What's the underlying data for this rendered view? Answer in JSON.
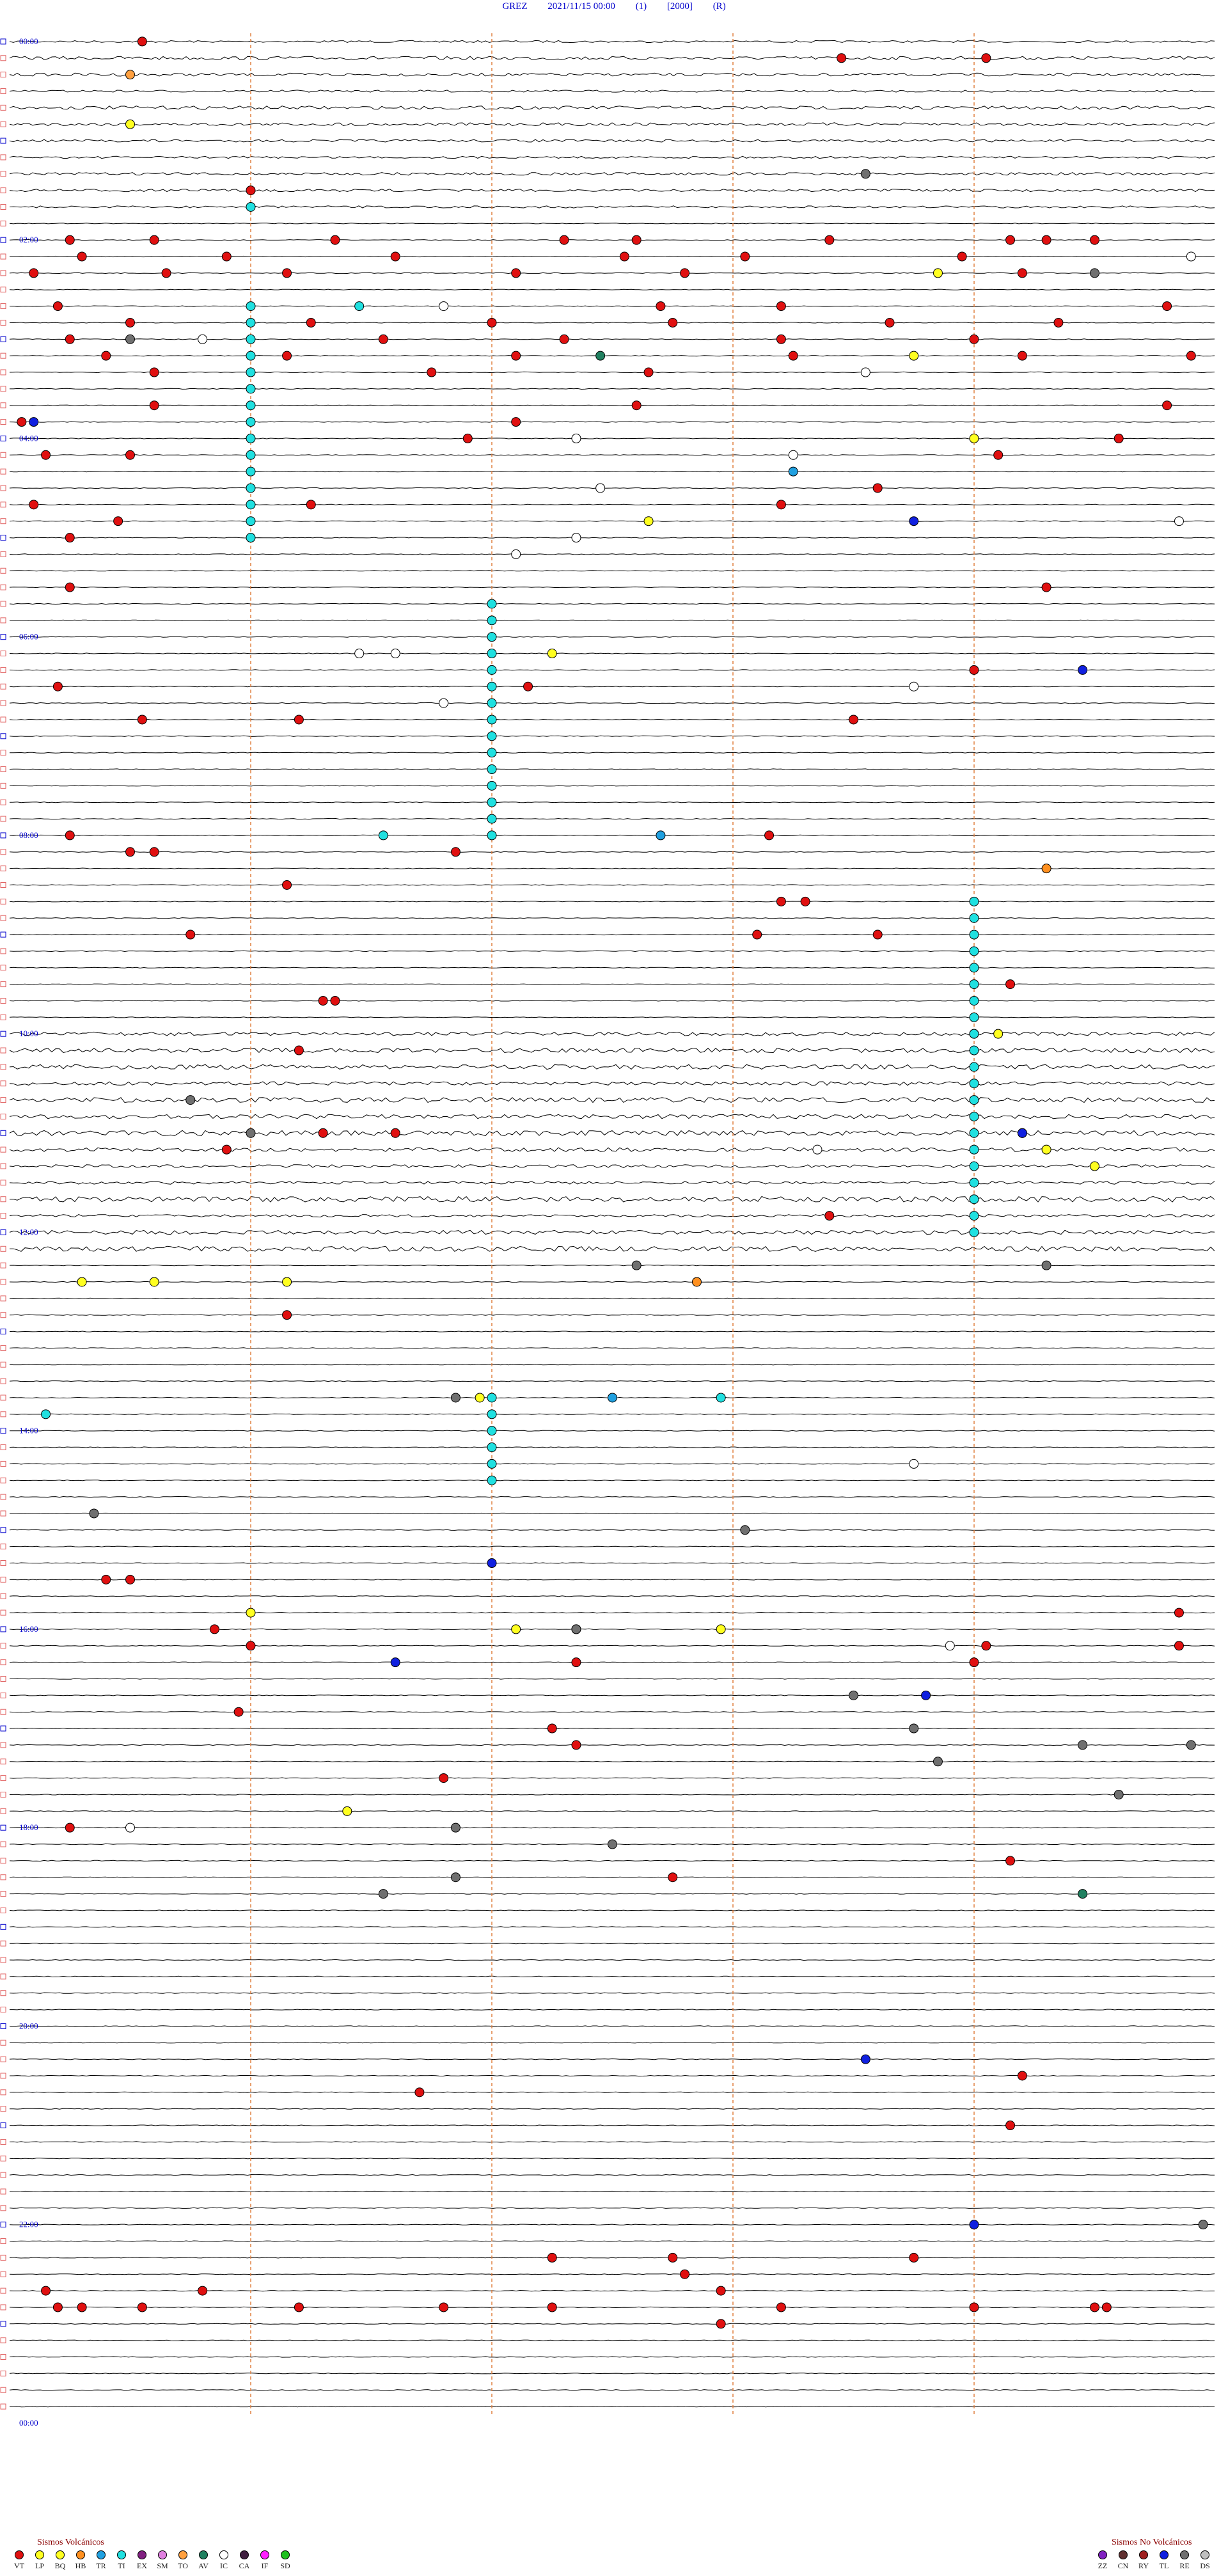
{
  "header": {
    "station": "GREZ",
    "datetime": "2021/11/15 00:00",
    "channel": "(1)",
    "scale": "[2000]",
    "mode": "(R)"
  },
  "legend_volcanic": {
    "title": "Sismos Volcánicos",
    "items": [
      {
        "code": "VT",
        "color": "#e01010"
      },
      {
        "code": "LP",
        "color": "#ffff20"
      },
      {
        "code": "BQ",
        "color": "#ffff20"
      },
      {
        "code": "HB",
        "color": "#ff9020"
      },
      {
        "code": "TR",
        "color": "#20a0e0"
      },
      {
        "code": "TI",
        "color": "#20e0e0"
      },
      {
        "code": "EX",
        "color": "#802080"
      },
      {
        "code": "SM",
        "color": "#e080e0"
      },
      {
        "code": "TO",
        "color": "#ffa040"
      },
      {
        "code": "AV",
        "color": "#208060"
      },
      {
        "code": "IC",
        "color": "#ffffff"
      },
      {
        "code": "CA",
        "color": "#402040"
      },
      {
        "code": "IF",
        "color": "#ff20ff"
      },
      {
        "code": "SD",
        "color": "#20c020"
      }
    ]
  },
  "legend_nonvolcanic": {
    "title": "Sismos No Volcánicos",
    "items": [
      {
        "code": "ZZ",
        "color": "#8020c0"
      },
      {
        "code": "CN",
        "color": "#603030"
      },
      {
        "code": "RY",
        "color": "#a02020"
      },
      {
        "code": "TL",
        "color": "#1020e0"
      },
      {
        "code": "RE",
        "color": "#707070"
      },
      {
        "code": "DS",
        "color": "#c0c0c0"
      }
    ]
  },
  "chart_data": {
    "type": "scatter",
    "title": "GREZ 2021/11/15 00:00 (1) [2000] (R)",
    "x_unit": "minutes within trace row",
    "y_unit": "hours",
    "time_labels": [
      "00:00",
      "02:00",
      "04:00",
      "06:00",
      "08:00",
      "10:00",
      "12:00",
      "14:00",
      "16:00",
      "18:00",
      "20:00",
      "22:00",
      "00:00"
    ],
    "rows": 144,
    "row_minutes": 10,
    "ylim": [
      0,
      24
    ],
    "xlim": [
      0,
      10
    ],
    "vertical_markers_min": [
      2,
      4,
      6,
      8
    ],
    "events": [
      {
        "t": 0.05,
        "x": 1.1,
        "type": "VT"
      },
      {
        "t": 0.1,
        "x": 6.9,
        "type": "VT"
      },
      {
        "t": 0.1,
        "x": 8.1,
        "type": "VT"
      },
      {
        "t": 0.3,
        "x": 1.0,
        "type": "TO"
      },
      {
        "t": 0.8,
        "x": 1.0,
        "type": "LP"
      },
      {
        "t": 1.3,
        "x": 7.1,
        "type": "RE"
      },
      {
        "t": 1.5,
        "x": 2.0,
        "type": "VT"
      },
      {
        "t": 1.6,
        "x": 2.0,
        "type": "TI"
      },
      {
        "t": 2.0,
        "x": 0.5,
        "type": "VT"
      },
      {
        "t": 2.0,
        "x": 1.2,
        "type": "VT"
      },
      {
        "t": 2.0,
        "x": 2.7,
        "type": "VT"
      },
      {
        "t": 2.0,
        "x": 4.6,
        "type": "VT"
      },
      {
        "t": 2.0,
        "x": 5.2,
        "type": "VT"
      },
      {
        "t": 2.0,
        "x": 6.8,
        "type": "VT"
      },
      {
        "t": 2.0,
        "x": 8.3,
        "type": "VT"
      },
      {
        "t": 2.0,
        "x": 8.6,
        "type": "VT"
      },
      {
        "t": 2.0,
        "x": 9.0,
        "type": "VT"
      },
      {
        "t": 2.2,
        "x": 0.6,
        "type": "VT"
      },
      {
        "t": 2.2,
        "x": 1.8,
        "type": "VT"
      },
      {
        "t": 2.2,
        "x": 3.2,
        "type": "VT"
      },
      {
        "t": 2.2,
        "x": 5.1,
        "type": "VT"
      },
      {
        "t": 2.2,
        "x": 6.1,
        "type": "VT"
      },
      {
        "t": 2.2,
        "x": 7.9,
        "type": "VT"
      },
      {
        "t": 2.2,
        "x": 9.8,
        "type": "IC"
      },
      {
        "t": 2.3,
        "x": 7.7,
        "type": "LP"
      },
      {
        "t": 2.3,
        "x": 9.0,
        "type": "RE"
      },
      {
        "t": 2.4,
        "x": 0.2,
        "type": "VT"
      },
      {
        "t": 2.4,
        "x": 1.3,
        "type": "VT"
      },
      {
        "t": 2.4,
        "x": 2.3,
        "type": "VT"
      },
      {
        "t": 2.4,
        "x": 4.2,
        "type": "VT"
      },
      {
        "t": 2.4,
        "x": 5.6,
        "type": "VT"
      },
      {
        "t": 2.4,
        "x": 8.4,
        "type": "VT"
      },
      {
        "t": 2.6,
        "x": 0.4,
        "type": "VT"
      },
      {
        "t": 2.6,
        "x": 2.9,
        "type": "TI"
      },
      {
        "t": 2.6,
        "x": 3.6,
        "type": "IC"
      },
      {
        "t": 2.6,
        "x": 5.4,
        "type": "VT"
      },
      {
        "t": 2.6,
        "x": 6.4,
        "type": "VT"
      },
      {
        "t": 2.6,
        "x": 9.6,
        "type": "VT"
      },
      {
        "t": 2.8,
        "x": 1.0,
        "type": "VT"
      },
      {
        "t": 2.8,
        "x": 2.5,
        "type": "VT"
      },
      {
        "t": 2.8,
        "x": 4.0,
        "type": "VT"
      },
      {
        "t": 2.8,
        "x": 5.5,
        "type": "VT"
      },
      {
        "t": 2.8,
        "x": 7.3,
        "type": "VT"
      },
      {
        "t": 2.8,
        "x": 8.7,
        "type": "VT"
      },
      {
        "t": 3.0,
        "x": 0.5,
        "type": "VT"
      },
      {
        "t": 3.0,
        "x": 1.6,
        "type": "IC"
      },
      {
        "t": 3.0,
        "x": 3.1,
        "type": "VT"
      },
      {
        "t": 3.0,
        "x": 4.6,
        "type": "VT"
      },
      {
        "t": 3.0,
        "x": 6.4,
        "type": "VT"
      },
      {
        "t": 3.0,
        "x": 8.0,
        "type": "VT"
      },
      {
        "t": 3.0,
        "x": 1.0,
        "type": "RE"
      },
      {
        "t": 3.2,
        "x": 0.8,
        "type": "VT"
      },
      {
        "t": 3.2,
        "x": 2.3,
        "type": "VT"
      },
      {
        "t": 3.2,
        "x": 4.2,
        "type": "VT"
      },
      {
        "t": 3.2,
        "x": 4.9,
        "type": "AV"
      },
      {
        "t": 3.2,
        "x": 6.5,
        "type": "VT"
      },
      {
        "t": 3.2,
        "x": 7.5,
        "type": "LP"
      },
      {
        "t": 3.2,
        "x": 8.4,
        "type": "VT"
      },
      {
        "t": 3.2,
        "x": 9.8,
        "type": "VT"
      },
      {
        "t": 3.4,
        "x": 1.2,
        "type": "VT"
      },
      {
        "t": 3.4,
        "x": 3.5,
        "type": "VT"
      },
      {
        "t": 3.4,
        "x": 5.3,
        "type": "VT"
      },
      {
        "t": 3.4,
        "x": 7.1,
        "type": "IC"
      },
      {
        "t": 3.6,
        "x": 1.2,
        "type": "VT"
      },
      {
        "t": 3.6,
        "x": 5.2,
        "type": "VT"
      },
      {
        "t": 3.6,
        "x": 9.6,
        "type": "VT"
      },
      {
        "t": 3.8,
        "x": 0.1,
        "type": "VT"
      },
      {
        "t": 3.8,
        "x": 4.2,
        "type": "VT"
      },
      {
        "t": 3.9,
        "x": 0.2,
        "type": "TL"
      },
      {
        "t": 4.0,
        "x": 3.8,
        "type": "VT"
      },
      {
        "t": 4.0,
        "x": 4.7,
        "type": "IC"
      },
      {
        "t": 4.0,
        "x": 8.0,
        "type": "LP"
      },
      {
        "t": 4.0,
        "x": 9.2,
        "type": "VT"
      },
      {
        "t": 4.2,
        "x": 0.3,
        "type": "VT"
      },
      {
        "t": 4.2,
        "x": 1.0,
        "type": "VT"
      },
      {
        "t": 4.2,
        "x": 6.5,
        "type": "IC"
      },
      {
        "t": 4.2,
        "x": 8.2,
        "type": "VT"
      },
      {
        "t": 4.3,
        "x": 6.5,
        "type": "TR"
      },
      {
        "t": 4.5,
        "x": 4.9,
        "type": "IC"
      },
      {
        "t": 4.5,
        "x": 7.2,
        "type": "VT"
      },
      {
        "t": 4.6,
        "x": 0.2,
        "type": "VT"
      },
      {
        "t": 4.6,
        "x": 2.5,
        "type": "VT"
      },
      {
        "t": 4.6,
        "x": 6.4,
        "type": "VT"
      },
      {
        "t": 4.8,
        "x": 0.9,
        "type": "VT"
      },
      {
        "t": 4.8,
        "x": 5.3,
        "type": "LP"
      },
      {
        "t": 4.8,
        "x": 7.5,
        "type": "TL"
      },
      {
        "t": 4.8,
        "x": 9.7,
        "type": "IC"
      },
      {
        "t": 5.0,
        "x": 0.5,
        "type": "VT"
      },
      {
        "t": 5.0,
        "x": 4.7,
        "type": "IC"
      },
      {
        "t": 5.2,
        "x": 4.2,
        "type": "IC"
      },
      {
        "t": 5.5,
        "x": 0.5,
        "type": "VT"
      },
      {
        "t": 5.5,
        "x": 8.6,
        "type": "VT"
      },
      {
        "t": 6.1,
        "x": 2.9,
        "type": "IC"
      },
      {
        "t": 6.1,
        "x": 3.2,
        "type": "IC"
      },
      {
        "t": 6.1,
        "x": 4.5,
        "type": "LP"
      },
      {
        "t": 6.3,
        "x": 8.0,
        "type": "VT"
      },
      {
        "t": 6.3,
        "x": 8.9,
        "type": "TL"
      },
      {
        "t": 6.5,
        "x": 0.4,
        "type": "VT"
      },
      {
        "t": 6.5,
        "x": 4.3,
        "type": "VT"
      },
      {
        "t": 6.5,
        "x": 7.5,
        "type": "IC"
      },
      {
        "t": 6.6,
        "x": 3.6,
        "type": "IC"
      },
      {
        "t": 6.8,
        "x": 1.1,
        "type": "VT"
      },
      {
        "t": 6.8,
        "x": 2.4,
        "type": "VT"
      },
      {
        "t": 6.8,
        "x": 7.0,
        "type": "VT"
      },
      {
        "t": 8.0,
        "x": 0.5,
        "type": "VT"
      },
      {
        "t": 8.0,
        "x": 3.1,
        "type": "TI"
      },
      {
        "t": 8.0,
        "x": 5.4,
        "type": "TR"
      },
      {
        "t": 8.0,
        "x": 6.3,
        "type": "VT"
      },
      {
        "t": 8.2,
        "x": 1.0,
        "type": "VT"
      },
      {
        "t": 8.2,
        "x": 1.2,
        "type": "VT"
      },
      {
        "t": 8.2,
        "x": 3.7,
        "type": "VT"
      },
      {
        "t": 8.3,
        "x": 8.6,
        "type": "HB"
      },
      {
        "t": 8.5,
        "x": 2.3,
        "type": "VT"
      },
      {
        "t": 8.6,
        "x": 6.4,
        "type": "VT"
      },
      {
        "t": 8.6,
        "x": 6.6,
        "type": "VT"
      },
      {
        "t": 9.0,
        "x": 1.5,
        "type": "VT"
      },
      {
        "t": 9.0,
        "x": 6.2,
        "type": "VT"
      },
      {
        "t": 9.0,
        "x": 7.2,
        "type": "VT"
      },
      {
        "t": 9.5,
        "x": 8.3,
        "type": "VT"
      },
      {
        "t": 9.7,
        "x": 2.6,
        "type": "VT"
      },
      {
        "t": 9.7,
        "x": 2.7,
        "type": "VT"
      },
      {
        "t": 10.0,
        "x": 8.2,
        "type": "LP"
      },
      {
        "t": 10.2,
        "x": 2.4,
        "type": "VT"
      },
      {
        "t": 10.6,
        "x": 1.5,
        "type": "RE"
      },
      {
        "t": 11.0,
        "x": 2.0,
        "type": "RE"
      },
      {
        "t": 11.0,
        "x": 2.6,
        "type": "VT"
      },
      {
        "t": 11.0,
        "x": 3.2,
        "type": "VT"
      },
      {
        "t": 11.0,
        "x": 8.4,
        "type": "VT"
      },
      {
        "t": 11.0,
        "x": 8.4,
        "type": "TL"
      },
      {
        "t": 11.2,
        "x": 1.8,
        "type": "VT"
      },
      {
        "t": 11.2,
        "x": 6.7,
        "type": "IC"
      },
      {
        "t": 11.2,
        "x": 8.6,
        "type": "LP"
      },
      {
        "t": 11.4,
        "x": 9.0,
        "type": "LP"
      },
      {
        "t": 11.8,
        "x": 6.8,
        "type": "VT"
      },
      {
        "t": 12.3,
        "x": 5.2,
        "type": "RE"
      },
      {
        "t": 12.4,
        "x": 8.6,
        "type": "RE"
      },
      {
        "t": 12.5,
        "x": 0.6,
        "type": "LP"
      },
      {
        "t": 12.5,
        "x": 1.2,
        "type": "LP"
      },
      {
        "t": 12.5,
        "x": 2.3,
        "type": "LP"
      },
      {
        "t": 12.5,
        "x": 5.7,
        "type": "HB"
      },
      {
        "t": 12.8,
        "x": 2.3,
        "type": "VT"
      },
      {
        "t": 13.6,
        "x": 3.7,
        "type": "RE"
      },
      {
        "t": 13.6,
        "x": 5.9,
        "type": "TI"
      },
      {
        "t": 13.7,
        "x": 3.9,
        "type": "LP"
      },
      {
        "t": 13.7,
        "x": 5.0,
        "type": "TR"
      },
      {
        "t": 13.8,
        "x": 0.3,
        "type": "TI"
      },
      {
        "t": 14.3,
        "x": 7.5,
        "type": "IC"
      },
      {
        "t": 14.8,
        "x": 0.7,
        "type": "RE"
      },
      {
        "t": 15.0,
        "x": 6.1,
        "type": "RE"
      },
      {
        "t": 15.3,
        "x": 4.0,
        "type": "TL"
      },
      {
        "t": 15.5,
        "x": 0.8,
        "type": "VT"
      },
      {
        "t": 15.5,
        "x": 1.0,
        "type": "VT"
      },
      {
        "t": 15.8,
        "x": 9.7,
        "type": "VT"
      },
      {
        "t": 15.9,
        "x": 2.0,
        "type": "LP"
      },
      {
        "t": 16.0,
        "x": 1.7,
        "type": "VT"
      },
      {
        "t": 16.0,
        "x": 4.2,
        "type": "LP"
      },
      {
        "t": 16.0,
        "x": 4.7,
        "type": "LP"
      },
      {
        "t": 16.0,
        "x": 5.9,
        "type": "LP"
      },
      {
        "t": 16.0,
        "x": 4.7,
        "type": "RE"
      },
      {
        "t": 16.1,
        "x": 8.1,
        "type": "VT"
      },
      {
        "t": 16.2,
        "x": 2.0,
        "type": "VT"
      },
      {
        "t": 16.2,
        "x": 7.8,
        "type": "IC"
      },
      {
        "t": 16.2,
        "x": 9.7,
        "type": "VT"
      },
      {
        "t": 16.3,
        "x": 3.2,
        "type": "TL"
      },
      {
        "t": 16.4,
        "x": 4.7,
        "type": "VT"
      },
      {
        "t": 16.4,
        "x": 8.0,
        "type": "VT"
      },
      {
        "t": 16.6,
        "x": 7.6,
        "type": "TL"
      },
      {
        "t": 16.7,
        "x": 7.0,
        "type": "RE"
      },
      {
        "t": 16.8,
        "x": 1.9,
        "type": "VT"
      },
      {
        "t": 17.0,
        "x": 4.5,
        "type": "VT"
      },
      {
        "t": 17.0,
        "x": 7.5,
        "type": "RE"
      },
      {
        "t": 17.1,
        "x": 8.9,
        "type": "RE"
      },
      {
        "t": 17.1,
        "x": 9.8,
        "type": "RE"
      },
      {
        "t": 17.2,
        "x": 4.7,
        "type": "VT"
      },
      {
        "t": 17.3,
        "x": 7.7,
        "type": "RE"
      },
      {
        "t": 17.5,
        "x": 3.6,
        "type": "VT"
      },
      {
        "t": 17.7,
        "x": 9.2,
        "type": "RE"
      },
      {
        "t": 17.8,
        "x": 2.8,
        "type": "LP"
      },
      {
        "t": 18.0,
        "x": 0.5,
        "type": "VT"
      },
      {
        "t": 18.0,
        "x": 1.0,
        "type": "IC"
      },
      {
        "t": 18.0,
        "x": 3.7,
        "type": "RE"
      },
      {
        "t": 18.2,
        "x": 5.0,
        "type": "RE"
      },
      {
        "t": 18.3,
        "x": 8.3,
        "type": "VT"
      },
      {
        "t": 18.5,
        "x": 5.5,
        "type": "VT"
      },
      {
        "t": 18.6,
        "x": 3.1,
        "type": "RE"
      },
      {
        "t": 18.5,
        "x": 3.7,
        "type": "RE"
      },
      {
        "t": 18.6,
        "x": 8.9,
        "type": "AV"
      },
      {
        "t": 20.3,
        "x": 7.1,
        "type": "TL"
      },
      {
        "t": 20.5,
        "x": 8.4,
        "type": "VT"
      },
      {
        "t": 20.7,
        "x": 3.4,
        "type": "VT"
      },
      {
        "t": 21.0,
        "x": 8.3,
        "type": "VT"
      },
      {
        "t": 22.0,
        "x": 8.0,
        "type": "TL"
      },
      {
        "t": 22.0,
        "x": 9.9,
        "type": "RE"
      },
      {
        "t": 22.3,
        "x": 4.5,
        "type": "VT"
      },
      {
        "t": 22.3,
        "x": 5.5,
        "type": "VT"
      },
      {
        "t": 22.3,
        "x": 7.5,
        "type": "VT"
      },
      {
        "t": 22.5,
        "x": 5.6,
        "type": "VT"
      },
      {
        "t": 22.7,
        "x": 0.3,
        "type": "VT"
      },
      {
        "t": 22.7,
        "x": 1.6,
        "type": "VT"
      },
      {
        "t": 22.7,
        "x": 5.9,
        "type": "VT"
      },
      {
        "t": 22.8,
        "x": 0.6,
        "type": "VT"
      },
      {
        "t": 22.8,
        "x": 6.4,
        "type": "VT"
      },
      {
        "t": 22.8,
        "x": 9.0,
        "type": "VT"
      },
      {
        "t": 22.8,
        "x": 9.1,
        "type": "VT"
      },
      {
        "t": 22.9,
        "x": 0.4,
        "type": "VT"
      },
      {
        "t": 22.9,
        "x": 1.1,
        "type": "VT"
      },
      {
        "t": 22.9,
        "x": 2.4,
        "type": "VT"
      },
      {
        "t": 22.9,
        "x": 3.6,
        "type": "VT"
      },
      {
        "t": 22.9,
        "x": 4.5,
        "type": "VT"
      },
      {
        "t": 22.9,
        "x": 8.0,
        "type": "VT"
      },
      {
        "t": 23.0,
        "x": 5.9,
        "type": "VT"
      }
    ],
    "tremor_columns": [
      {
        "x": 2.0,
        "t_start": 2.6,
        "t_end": 5.0
      },
      {
        "x": 4.0,
        "t_start": 5.6,
        "t_end": 8.0
      },
      {
        "x": 8.0,
        "t_start": 8.6,
        "t_end": 10.0
      },
      {
        "x": 8.0,
        "t_start": 10.0,
        "t_end": 12.0
      },
      {
        "x": 4.0,
        "t_start": 13.6,
        "t_end": 14.5
      }
    ]
  }
}
